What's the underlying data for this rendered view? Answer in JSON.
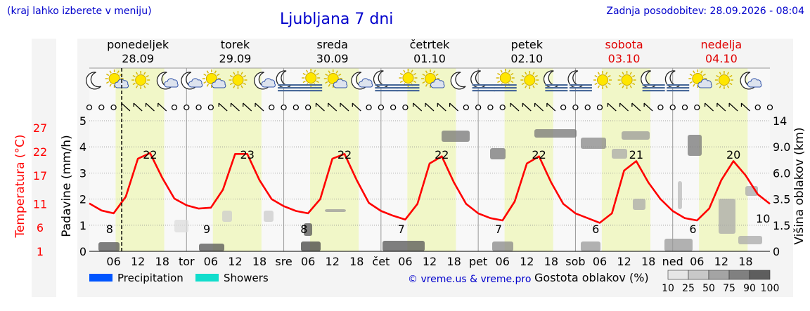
{
  "header": {
    "note": "(kraj lahko izberete v meniju)",
    "title": "Ljubljana 7 dni",
    "updated": "Zadnja posodobitev: 28.09.2026 - 08:04"
  },
  "colors": {
    "temperature": "#ff0000",
    "precipitation": "#0055ff",
    "showers": "#11ddcc",
    "title": "#0000cc",
    "day_band": "#f1f7c8",
    "weekend": "#e00000"
  },
  "days": [
    {
      "name": "ponedeljek",
      "date": "28.09",
      "weekend": false
    },
    {
      "name": "torek",
      "date": "29.09",
      "weekend": false
    },
    {
      "name": "sreda",
      "date": "30.09",
      "weekend": false
    },
    {
      "name": "četrtek",
      "date": "01.10",
      "weekend": false
    },
    {
      "name": "petek",
      "date": "02.10",
      "weekend": false
    },
    {
      "name": "sobota",
      "date": "03.10",
      "weekend": true
    },
    {
      "name": "nedelja",
      "date": "04.10",
      "weekend": true
    }
  ],
  "x_axis": {
    "day_abbrev": [
      "tor",
      "sre",
      "čet",
      "pet",
      "sob",
      "ned"
    ],
    "hour_ticks": [
      "06",
      "12",
      "18"
    ]
  },
  "icons": [
    [
      "moon",
      "sun-cloud",
      "sun",
      "cloud-moon"
    ],
    [
      "cloud-moon",
      "sun-cloud",
      "sun",
      "cloud-moon"
    ],
    [
      "moon-fog",
      "sun-fog",
      "sun-cloud",
      "cloud-moon"
    ],
    [
      "moon-fog",
      "sun-fog",
      "sun-cloud",
      "moon"
    ],
    [
      "moon-fog",
      "sun-fog",
      "sun",
      "moon-fog"
    ],
    [
      "moon-fog",
      "sun",
      "sun",
      "moon-fog"
    ],
    [
      "moon-fog",
      "sun-cloud",
      "sun",
      "cloud-moon"
    ]
  ],
  "chart_data": {
    "type": "line",
    "y_left_precip": {
      "label": "Padavine (mm/h)",
      "ticks": [
        0,
        1,
        2,
        3,
        4,
        5
      ],
      "range": [
        0,
        5
      ]
    },
    "y_left_temp": {
      "label": "Temperatura (°C)",
      "ticks": [
        1,
        6,
        11,
        17,
        22,
        27
      ]
    },
    "y_right": {
      "label": "Višina oblakov (km)",
      "ticks": [
        "0",
        "1.5",
        "3.5",
        "6.0",
        "9.0",
        "14"
      ]
    },
    "temperature": {
      "hours": [
        0,
        3,
        6,
        9,
        12,
        15,
        18,
        21,
        24,
        27,
        30,
        33,
        36,
        39,
        42,
        45,
        48,
        51,
        54,
        57,
        60,
        63,
        66,
        69,
        72,
        75,
        78,
        81,
        84,
        87,
        90,
        93,
        96,
        99,
        102,
        105,
        108,
        111,
        114,
        117,
        120,
        123,
        126,
        129,
        132,
        135,
        138,
        141,
        144,
        147,
        150,
        153,
        156,
        159,
        162,
        165,
        168
      ],
      "values": [
        11.1,
        9.6,
        9.0,
        12.5,
        20.5,
        21.7,
        16.5,
        12.1,
        10.7,
        10.0,
        10.2,
        14.0,
        21.5,
        21.5,
        16.0,
        12.0,
        10.5,
        9.5,
        9.0,
        12.0,
        20.5,
        21.5,
        16.0,
        11.2,
        9.5,
        8.5,
        7.7,
        11.0,
        19.5,
        21.0,
        15.5,
        11.0,
        9.0,
        8.0,
        7.5,
        11.5,
        19.5,
        21.0,
        15.5,
        11.0,
        9.0,
        8.0,
        7.0,
        9.0,
        18.0,
        20.0,
        15.5,
        12.0,
        9.5,
        8.0,
        7.5,
        10.0,
        16.0,
        20.0,
        17.0,
        13.0,
        11.0
      ]
    },
    "labels": [
      {
        "text": "8",
        "kind": "min",
        "hour": 5
      },
      {
        "text": "22",
        "kind": "max",
        "hour": 15
      },
      {
        "text": "9",
        "kind": "min",
        "hour": 29
      },
      {
        "text": "23",
        "kind": "max",
        "hour": 39
      },
      {
        "text": "8",
        "kind": "min",
        "hour": 53
      },
      {
        "text": "22",
        "kind": "max",
        "hour": 63
      },
      {
        "text": "7",
        "kind": "min",
        "hour": 77
      },
      {
        "text": "22",
        "kind": "max",
        "hour": 87
      },
      {
        "text": "7",
        "kind": "min",
        "hour": 101
      },
      {
        "text": "22",
        "kind": "max",
        "hour": 111
      },
      {
        "text": "6",
        "kind": "min",
        "hour": 125
      },
      {
        "text": "21",
        "kind": "max",
        "hour": 135
      },
      {
        "text": "6",
        "kind": "min",
        "hour": 149
      },
      {
        "text": "20",
        "kind": "max",
        "hour": 159
      },
      {
        "text": "10",
        "kind": "end",
        "hour": 167
      }
    ],
    "current_hour": 8
  },
  "legend": {
    "precipitation": "Precipitation",
    "showers": "Showers",
    "credit": "© vreme.us & vreme.pro",
    "cloud_density_label": "Gostota oblakov (%)",
    "cloud_density_ticks": [
      "10",
      "25",
      "50",
      "75",
      "90",
      "100"
    ]
  }
}
